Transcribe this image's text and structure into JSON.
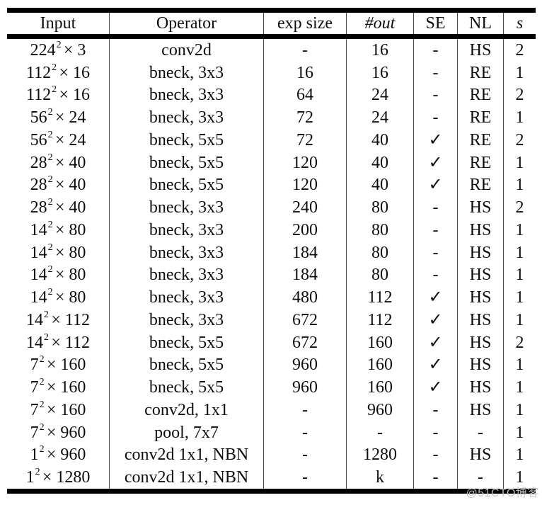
{
  "table": {
    "headers": {
      "input": "Input",
      "operator": "Operator",
      "exp_size": "exp size",
      "out": "#out",
      "se": "SE",
      "nl": "NL",
      "s": "s"
    },
    "rows": [
      {
        "input_res": "224",
        "input_exp": "2",
        "input_rest": "× 3",
        "operator": "conv2d",
        "exp_size": "-",
        "out": "16",
        "se": "-",
        "nl": "HS",
        "s": "2"
      },
      {
        "input_res": "112",
        "input_exp": "2",
        "input_rest": "× 16",
        "operator": "bneck, 3x3",
        "exp_size": "16",
        "out": "16",
        "se": "-",
        "nl": "RE",
        "s": "1"
      },
      {
        "input_res": "112",
        "input_exp": "2",
        "input_rest": "× 16",
        "operator": "bneck, 3x3",
        "exp_size": "64",
        "out": "24",
        "se": "-",
        "nl": "RE",
        "s": "2"
      },
      {
        "input_res": "56",
        "input_exp": "2",
        "input_rest": "× 24",
        "operator": "bneck, 3x3",
        "exp_size": "72",
        "out": "24",
        "se": "-",
        "nl": "RE",
        "s": "1"
      },
      {
        "input_res": "56",
        "input_exp": "2",
        "input_rest": "× 24",
        "operator": "bneck, 5x5",
        "exp_size": "72",
        "out": "40",
        "se": "✓",
        "nl": "RE",
        "s": "2"
      },
      {
        "input_res": "28",
        "input_exp": "2",
        "input_rest": "× 40",
        "operator": "bneck, 5x5",
        "exp_size": "120",
        "out": "40",
        "se": "✓",
        "nl": "RE",
        "s": "1"
      },
      {
        "input_res": "28",
        "input_exp": "2",
        "input_rest": "× 40",
        "operator": "bneck, 5x5",
        "exp_size": "120",
        "out": "40",
        "se": "✓",
        "nl": "RE",
        "s": "1"
      },
      {
        "input_res": "28",
        "input_exp": "2",
        "input_rest": "× 40",
        "operator": "bneck, 3x3",
        "exp_size": "240",
        "out": "80",
        "se": "-",
        "nl": "HS",
        "s": "2"
      },
      {
        "input_res": "14",
        "input_exp": "2",
        "input_rest": "× 80",
        "operator": "bneck, 3x3",
        "exp_size": "200",
        "out": "80",
        "se": "-",
        "nl": "HS",
        "s": "1"
      },
      {
        "input_res": "14",
        "input_exp": "2",
        "input_rest": "× 80",
        "operator": "bneck, 3x3",
        "exp_size": "184",
        "out": "80",
        "se": "-",
        "nl": "HS",
        "s": "1"
      },
      {
        "input_res": "14",
        "input_exp": "2",
        "input_rest": "× 80",
        "operator": "bneck, 3x3",
        "exp_size": "184",
        "out": "80",
        "se": "-",
        "nl": "HS",
        "s": "1"
      },
      {
        "input_res": "14",
        "input_exp": "2",
        "input_rest": "× 80",
        "operator": "bneck, 3x3",
        "exp_size": "480",
        "out": "112",
        "se": "✓",
        "nl": "HS",
        "s": "1"
      },
      {
        "input_res": "14",
        "input_exp": "2",
        "input_rest": "× 112",
        "operator": "bneck, 3x3",
        "exp_size": "672",
        "out": "112",
        "se": "✓",
        "nl": "HS",
        "s": "1"
      },
      {
        "input_res": "14",
        "input_exp": "2",
        "input_rest": "× 112",
        "operator": "bneck, 5x5",
        "exp_size": "672",
        "out": "160",
        "se": "✓",
        "nl": "HS",
        "s": "2"
      },
      {
        "input_res": "7",
        "input_exp": "2",
        "input_rest": "× 160",
        "operator": "bneck, 5x5",
        "exp_size": "960",
        "out": "160",
        "se": "✓",
        "nl": "HS",
        "s": "1"
      },
      {
        "input_res": "7",
        "input_exp": "2",
        "input_rest": "× 160",
        "operator": "bneck, 5x5",
        "exp_size": "960",
        "out": "160",
        "se": "✓",
        "nl": "HS",
        "s": "1"
      },
      {
        "input_res": "7",
        "input_exp": "2",
        "input_rest": "× 160",
        "operator": "conv2d, 1x1",
        "exp_size": "-",
        "out": "960",
        "se": "-",
        "nl": "HS",
        "s": "1"
      },
      {
        "input_res": "7",
        "input_exp": "2",
        "input_rest": "× 960",
        "operator": "pool, 7x7",
        "exp_size": "-",
        "out": "-",
        "se": "-",
        "nl": "-",
        "s": "1"
      },
      {
        "input_res": "1",
        "input_exp": "2",
        "input_rest": "× 960",
        "operator": "conv2d 1x1, NBN",
        "exp_size": "-",
        "out": "1280",
        "se": "-",
        "nl": "HS",
        "s": "1"
      },
      {
        "input_res": "1",
        "input_exp": "2",
        "input_rest": "× 1280",
        "operator": "conv2d 1x1, NBN",
        "exp_size": "-",
        "out": "k",
        "se": "-",
        "nl": "-",
        "s": "1"
      }
    ]
  },
  "watermark": {
    "text": "@51CTO博客"
  }
}
